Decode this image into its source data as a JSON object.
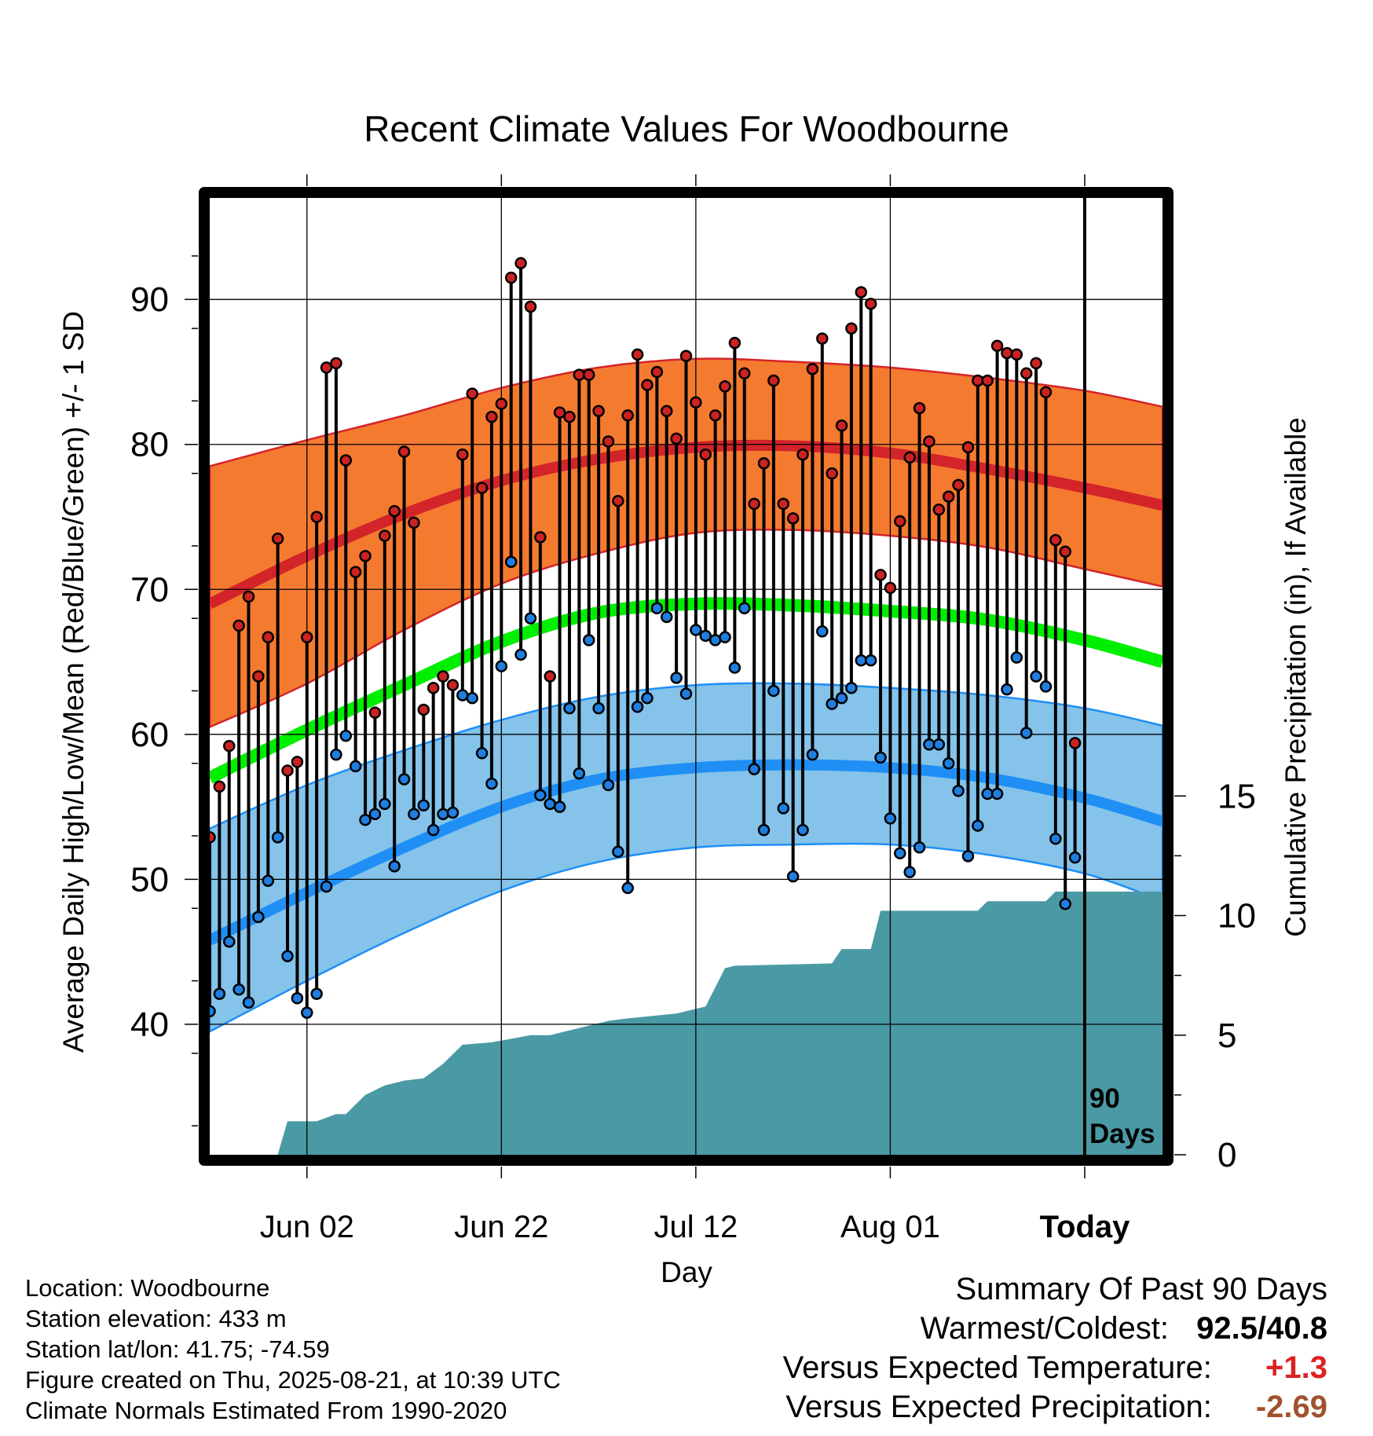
{
  "colors": {
    "high_band": "#f47a30",
    "high_mean": "#d3242a",
    "low_band": "#85c3ea",
    "low_mean": "#1f8ff5",
    "mean_line": "#00ee00",
    "precip": "#4a9aa5",
    "high_dot": "#cc2222",
    "low_dot": "#1f7fe0",
    "anomaly_temp": "#dd2222",
    "anomaly_precip": "#a0522d"
  },
  "chart_data": {
    "type": "line",
    "title": "Recent Climate Values For Woodbourne",
    "xlabel": "Day",
    "ylabel": "Average Daily High/Low/Mean (Red/Blue/Green) +/- 1 SD",
    "y2label": "Cumulative Precipitation (in), If Available",
    "ylim": [
      31,
      97
    ],
    "y_ticks": [
      40,
      50,
      60,
      70,
      80,
      90
    ],
    "y2lim": [
      0,
      40
    ],
    "y2_ticks": [
      0,
      5,
      10,
      15
    ],
    "x_start": "2025-05-23",
    "x_end": "2025-08-29",
    "x_ticks": [
      "Jun 02",
      "Jun 22",
      "Jul 12",
      "Aug 01",
      "Today"
    ],
    "x_tick_dates": [
      "2025-06-02",
      "2025-06-22",
      "2025-07-12",
      "2025-08-01",
      "2025-08-21"
    ],
    "today": "2025-08-21",
    "today_label": [
      "90",
      "Days"
    ],
    "grid": true,
    "normals": {
      "dates": [
        "2025-05-23",
        "2025-06-02",
        "2025-06-12",
        "2025-06-22",
        "2025-07-02",
        "2025-07-12",
        "2025-07-22",
        "2025-08-01",
        "2025-08-11",
        "2025-08-21",
        "2025-08-29"
      ],
      "high_mean": [
        69.0,
        72.3,
        75.2,
        77.5,
        79.0,
        79.8,
        79.9,
        79.4,
        78.3,
        77.0,
        75.8
      ],
      "high_plus_sd": [
        78.5,
        80.3,
        82.0,
        83.9,
        85.3,
        85.9,
        85.7,
        85.3,
        84.6,
        83.7,
        82.6
      ],
      "high_minus_sd": [
        60.5,
        63.5,
        67.2,
        70.4,
        72.5,
        73.9,
        74.1,
        73.7,
        72.9,
        71.4,
        70.2
      ],
      "mean": [
        57.0,
        60.3,
        63.4,
        66.4,
        68.4,
        69.0,
        68.9,
        68.5,
        67.9,
        66.5,
        65.0
      ],
      "low_mean": [
        45.8,
        49.1,
        52.2,
        55.0,
        56.9,
        57.7,
        57.9,
        57.7,
        57.0,
        55.6,
        54.0
      ],
      "low_plus_sd": [
        53.5,
        56.5,
        58.9,
        61.0,
        62.6,
        63.4,
        63.5,
        63.2,
        62.7,
        61.8,
        60.6
      ],
      "low_minus_sd": [
        39.5,
        43.0,
        46.3,
        49.2,
        51.2,
        52.2,
        52.4,
        52.4,
        51.7,
        50.4,
        48.5
      ]
    },
    "series": [
      {
        "name": "High",
        "x": [
          "2025-05-23",
          "2025-05-24",
          "2025-05-25",
          "2025-05-26",
          "2025-05-27",
          "2025-05-28",
          "2025-05-29",
          "2025-05-30",
          "2025-05-31",
          "2025-06-01",
          "2025-06-02",
          "2025-06-03",
          "2025-06-04",
          "2025-06-05",
          "2025-06-06",
          "2025-06-07",
          "2025-06-08",
          "2025-06-09",
          "2025-06-10",
          "2025-06-11",
          "2025-06-12",
          "2025-06-13",
          "2025-06-14",
          "2025-06-15",
          "2025-06-16",
          "2025-06-17",
          "2025-06-18",
          "2025-06-19",
          "2025-06-20",
          "2025-06-21",
          "2025-06-22",
          "2025-06-23",
          "2025-06-24",
          "2025-06-25",
          "2025-06-26",
          "2025-06-27",
          "2025-06-28",
          "2025-06-29",
          "2025-06-30",
          "2025-07-01",
          "2025-07-02",
          "2025-07-03",
          "2025-07-04",
          "2025-07-05",
          "2025-07-06",
          "2025-07-07",
          "2025-07-08",
          "2025-07-09",
          "2025-07-10",
          "2025-07-11",
          "2025-07-12",
          "2025-07-13",
          "2025-07-14",
          "2025-07-15",
          "2025-07-16",
          "2025-07-17",
          "2025-07-18",
          "2025-07-19",
          "2025-07-20",
          "2025-07-21",
          "2025-07-22",
          "2025-07-23",
          "2025-07-24",
          "2025-07-25",
          "2025-07-26",
          "2025-07-27",
          "2025-07-28",
          "2025-07-29",
          "2025-07-30",
          "2025-07-31",
          "2025-08-01",
          "2025-08-02",
          "2025-08-03",
          "2025-08-04",
          "2025-08-05",
          "2025-08-06",
          "2025-08-07",
          "2025-08-08",
          "2025-08-09",
          "2025-08-10",
          "2025-08-11",
          "2025-08-12",
          "2025-08-13",
          "2025-08-14",
          "2025-08-15",
          "2025-08-16",
          "2025-08-17",
          "2025-08-18",
          "2025-08-19",
          "2025-08-20"
        ],
        "values": [
          52.9,
          56.4,
          59.2,
          67.5,
          69.5,
          64.0,
          66.7,
          73.5,
          57.5,
          58.1,
          66.7,
          75.0,
          85.3,
          85.6,
          78.9,
          71.2,
          72.3,
          61.5,
          73.7,
          75.4,
          79.5,
          74.6,
          61.7,
          63.2,
          64.0,
          63.4,
          79.3,
          83.5,
          77.0,
          81.9,
          82.8,
          91.5,
          92.5,
          89.5,
          73.6,
          64.0,
          82.2,
          81.9,
          84.8,
          84.8,
          82.3,
          80.2,
          76.1,
          82.0,
          86.2,
          84.1,
          85.0,
          82.3,
          80.4,
          86.1,
          82.9,
          79.3,
          82.0,
          84.0,
          87.0,
          84.9,
          75.9,
          78.7,
          84.4,
          75.9,
          74.9,
          79.3,
          85.2,
          87.3,
          78.0,
          81.3,
          88.0,
          90.5,
          89.7,
          71.0,
          70.1,
          74.7,
          79.1,
          82.5,
          80.2,
          75.5,
          76.4,
          77.2,
          79.8,
          84.4,
          84.4,
          86.8,
          86.3,
          86.2,
          84.9,
          85.6,
          83.6,
          73.4,
          72.6,
          59.4
        ]
      },
      {
        "name": "Low",
        "x": [
          "2025-05-23",
          "2025-05-24",
          "2025-05-25",
          "2025-05-26",
          "2025-05-27",
          "2025-05-28",
          "2025-05-29",
          "2025-05-30",
          "2025-05-31",
          "2025-06-01",
          "2025-06-02",
          "2025-06-03",
          "2025-06-04",
          "2025-06-05",
          "2025-06-06",
          "2025-06-07",
          "2025-06-08",
          "2025-06-09",
          "2025-06-10",
          "2025-06-11",
          "2025-06-12",
          "2025-06-13",
          "2025-06-14",
          "2025-06-15",
          "2025-06-16",
          "2025-06-17",
          "2025-06-18",
          "2025-06-19",
          "2025-06-20",
          "2025-06-21",
          "2025-06-22",
          "2025-06-23",
          "2025-06-24",
          "2025-06-25",
          "2025-06-26",
          "2025-06-27",
          "2025-06-28",
          "2025-06-29",
          "2025-06-30",
          "2025-07-01",
          "2025-07-02",
          "2025-07-03",
          "2025-07-04",
          "2025-07-05",
          "2025-07-06",
          "2025-07-07",
          "2025-07-08",
          "2025-07-09",
          "2025-07-10",
          "2025-07-11",
          "2025-07-12",
          "2025-07-13",
          "2025-07-14",
          "2025-07-15",
          "2025-07-16",
          "2025-07-17",
          "2025-07-18",
          "2025-07-19",
          "2025-07-20",
          "2025-07-21",
          "2025-07-22",
          "2025-07-23",
          "2025-07-24",
          "2025-07-25",
          "2025-07-26",
          "2025-07-27",
          "2025-07-28",
          "2025-07-29",
          "2025-07-30",
          "2025-07-31",
          "2025-08-01",
          "2025-08-02",
          "2025-08-03",
          "2025-08-04",
          "2025-08-05",
          "2025-08-06",
          "2025-08-07",
          "2025-08-08",
          "2025-08-09",
          "2025-08-10",
          "2025-08-11",
          "2025-08-12",
          "2025-08-13",
          "2025-08-14",
          "2025-08-15",
          "2025-08-16",
          "2025-08-17",
          "2025-08-18",
          "2025-08-19",
          "2025-08-20"
        ],
        "values": [
          40.9,
          42.1,
          45.7,
          42.4,
          41.5,
          47.4,
          49.9,
          52.9,
          44.7,
          41.8,
          40.8,
          42.1,
          49.5,
          58.6,
          59.9,
          57.8,
          54.1,
          54.5,
          55.2,
          50.9,
          56.9,
          54.5,
          55.1,
          53.4,
          54.5,
          54.6,
          62.7,
          62.5,
          58.7,
          56.6,
          64.7,
          71.9,
          65.5,
          68.0,
          55.8,
          55.2,
          55.0,
          61.8,
          57.3,
          66.5,
          61.8,
          56.5,
          51.9,
          49.4,
          61.9,
          62.5,
          68.7,
          68.1,
          63.9,
          62.8,
          67.2,
          66.8,
          66.5,
          66.7,
          64.6,
          68.7,
          57.6,
          53.4,
          63.0,
          54.9,
          50.2,
          53.4,
          58.6,
          67.1,
          62.1,
          62.5,
          63.2,
          65.1,
          65.1,
          58.4,
          54.2,
          51.8,
          50.5,
          52.2,
          59.3,
          59.3,
          58.0,
          56.1,
          51.6,
          53.7,
          55.9,
          55.9,
          63.1,
          65.3,
          60.1,
          64.0,
          63.3,
          52.8,
          48.3,
          51.5
        ]
      }
    ],
    "precip_cumulative": {
      "x": [
        "2025-05-23",
        "2025-05-30",
        "2025-05-31",
        "2025-06-03",
        "2025-06-05",
        "2025-06-06",
        "2025-06-08",
        "2025-06-10",
        "2025-06-12",
        "2025-06-14",
        "2025-06-16",
        "2025-06-18",
        "2025-06-21",
        "2025-06-25",
        "2025-06-27",
        "2025-07-01",
        "2025-07-03",
        "2025-07-05",
        "2025-07-10",
        "2025-07-13",
        "2025-07-15",
        "2025-07-16",
        "2025-07-26",
        "2025-07-27",
        "2025-07-30",
        "2025-07-31",
        "2025-08-10",
        "2025-08-11",
        "2025-08-17",
        "2025-08-18",
        "2025-08-28"
      ],
      "values": [
        0.0,
        0.0,
        1.4,
        1.4,
        1.7,
        1.7,
        2.5,
        2.9,
        3.1,
        3.2,
        3.8,
        4.6,
        4.7,
        5.0,
        5.0,
        5.4,
        5.6,
        5.7,
        5.9,
        6.2,
        7.8,
        7.9,
        8.0,
        8.6,
        8.6,
        10.2,
        10.2,
        10.6,
        10.6,
        11.0,
        11.0
      ]
    }
  },
  "info": {
    "location": "Location: Woodbourne",
    "elevation": "Station elevation: 433 m",
    "latlon": "Station lat/lon: 41.75; -74.59",
    "created": "Figure created on Thu, 2025-08-21, at 10:39 UTC",
    "normals": "Climate Normals Estimated From 1990-2020"
  },
  "summary": {
    "title": "Summary Of Past 90 Days",
    "warmest_label": "Warmest/Coldest:",
    "warmest_value": "92.5",
    "coldest_value": "40.8",
    "separator": "/",
    "temp_label": "Versus Expected Temperature:",
    "temp_value": "+1.3",
    "precip_label": "Versus Expected Precipitation:",
    "precip_value": "-2.69"
  }
}
